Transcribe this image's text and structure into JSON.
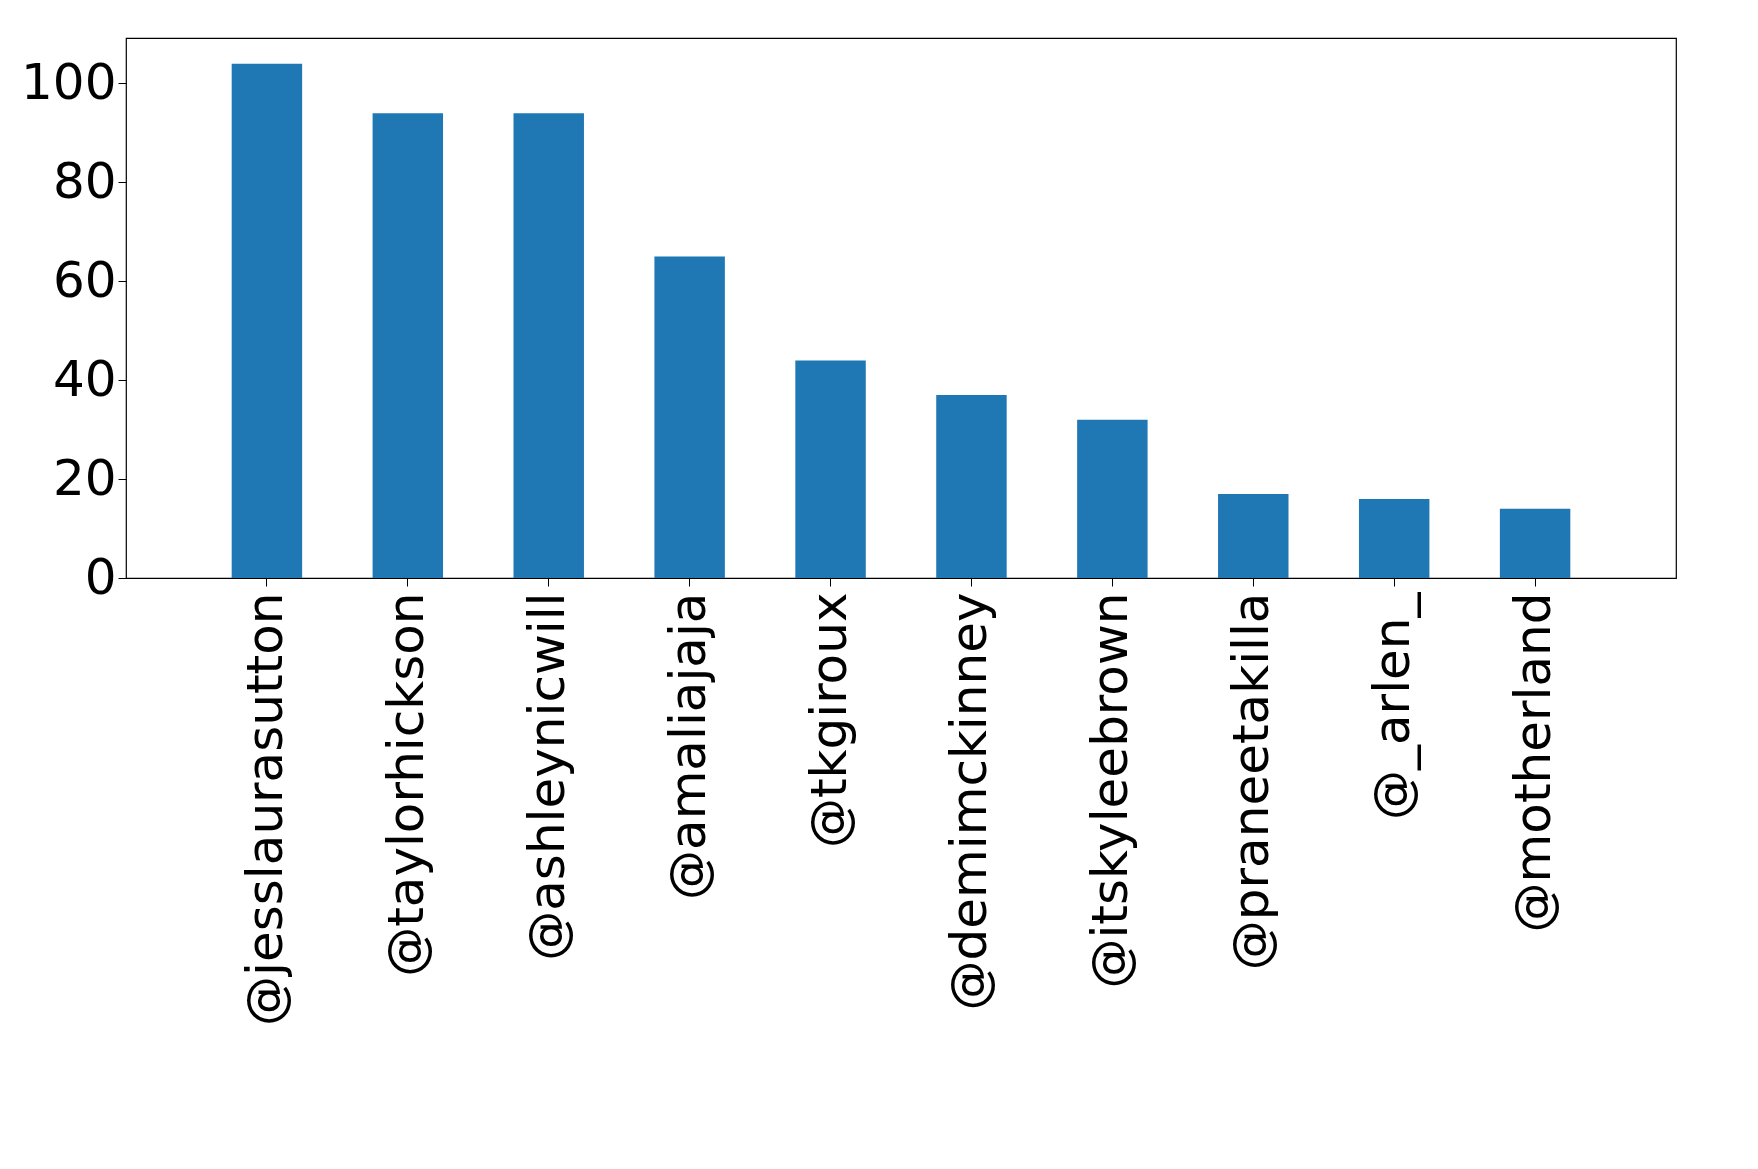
{
  "chart_data": {
    "type": "bar",
    "categories": [
      "@jesslaurasutton",
      "@taylorhickson",
      "@ashleynicwill",
      "@amaliajaja",
      "@tkgiroux",
      "@demimckinney",
      "@itskyleebrown",
      "@praneetakilla",
      "@_arlen_",
      "@motherland"
    ],
    "values": [
      104,
      94,
      94,
      65,
      44,
      37,
      32,
      17,
      16,
      14
    ],
    "color": "#1f77b4",
    "ylim": [
      0,
      109.2
    ],
    "yticks": [
      0,
      20,
      40,
      60,
      80,
      100
    ],
    "grid": false
  }
}
